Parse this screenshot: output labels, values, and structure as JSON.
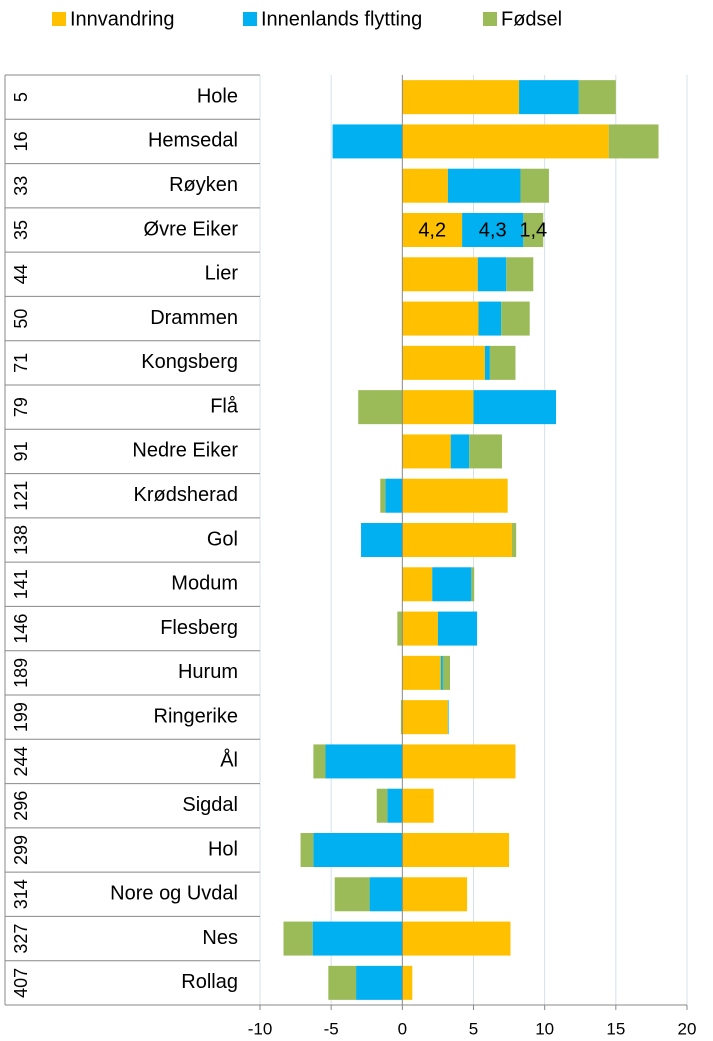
{
  "chart_data": {
    "type": "bar",
    "orientation": "horizontal",
    "stacked": true,
    "ranks": [
      5,
      16,
      33,
      35,
      44,
      50,
      71,
      79,
      91,
      121,
      138,
      141,
      146,
      189,
      199,
      244,
      296,
      299,
      314,
      327,
      407
    ],
    "categories": [
      "Hole",
      "Hemsedal",
      "Røyken",
      "Øvre Eiker",
      "Lier",
      "Drammen",
      "Kongsberg",
      "Flå",
      "Nedre Eiker",
      "Krødsherad",
      "Gol",
      "Modum",
      "Flesberg",
      "Hurum",
      "Ringerike",
      "Ål",
      "Sigdal",
      "Hol",
      "Nore og Uvdal",
      "Nes",
      "Rollag"
    ],
    "series": [
      {
        "name": "Innvandring",
        "color": "#ffc000",
        "values": [
          8.2,
          14.5,
          3.2,
          4.2,
          5.3,
          5.35,
          5.8,
          5.0,
          3.4,
          7.4,
          7.7,
          2.1,
          2.5,
          2.7,
          3.2,
          7.95,
          2.2,
          7.5,
          4.55,
          7.6,
          0.7
        ],
        "value_labels": [
          null,
          null,
          null,
          "4,2",
          null,
          null,
          null,
          null,
          null,
          null,
          null,
          null,
          null,
          null,
          null,
          null,
          null,
          null,
          null,
          null,
          null
        ]
      },
      {
        "name": "Innenlands flytting",
        "color": "#00b0f0",
        "values": [
          4.2,
          -4.9,
          5.1,
          4.3,
          2.0,
          1.6,
          0.35,
          5.8,
          1.3,
          -1.2,
          -2.9,
          2.75,
          2.75,
          0.15,
          0.05,
          -5.4,
          -1.05,
          -6.25,
          -2.3,
          -6.3,
          -3.25
        ],
        "value_labels": [
          null,
          null,
          null,
          "4,3",
          null,
          null,
          null,
          null,
          null,
          null,
          null,
          null,
          null,
          null,
          null,
          null,
          null,
          null,
          null,
          null,
          null
        ]
      },
      {
        "name": "Fødsel",
        "color": "#9bbb59",
        "values": [
          2.6,
          3.5,
          2.0,
          1.4,
          1.9,
          2.0,
          1.8,
          -3.1,
          2.3,
          -0.35,
          0.3,
          0.2,
          -0.35,
          0.5,
          -0.1,
          -0.85,
          -0.75,
          -0.9,
          -2.45,
          -2.05,
          -1.95
        ],
        "value_labels": [
          null,
          null,
          null,
          "1,4",
          null,
          null,
          null,
          null,
          null,
          null,
          null,
          null,
          null,
          null,
          null,
          null,
          null,
          null,
          null,
          null,
          null
        ]
      }
    ],
    "xlim": [
      -10,
      20
    ],
    "xticks": [
      -10,
      -5,
      0,
      5,
      10,
      15,
      20
    ],
    "grid": true,
    "legend": "top"
  }
}
